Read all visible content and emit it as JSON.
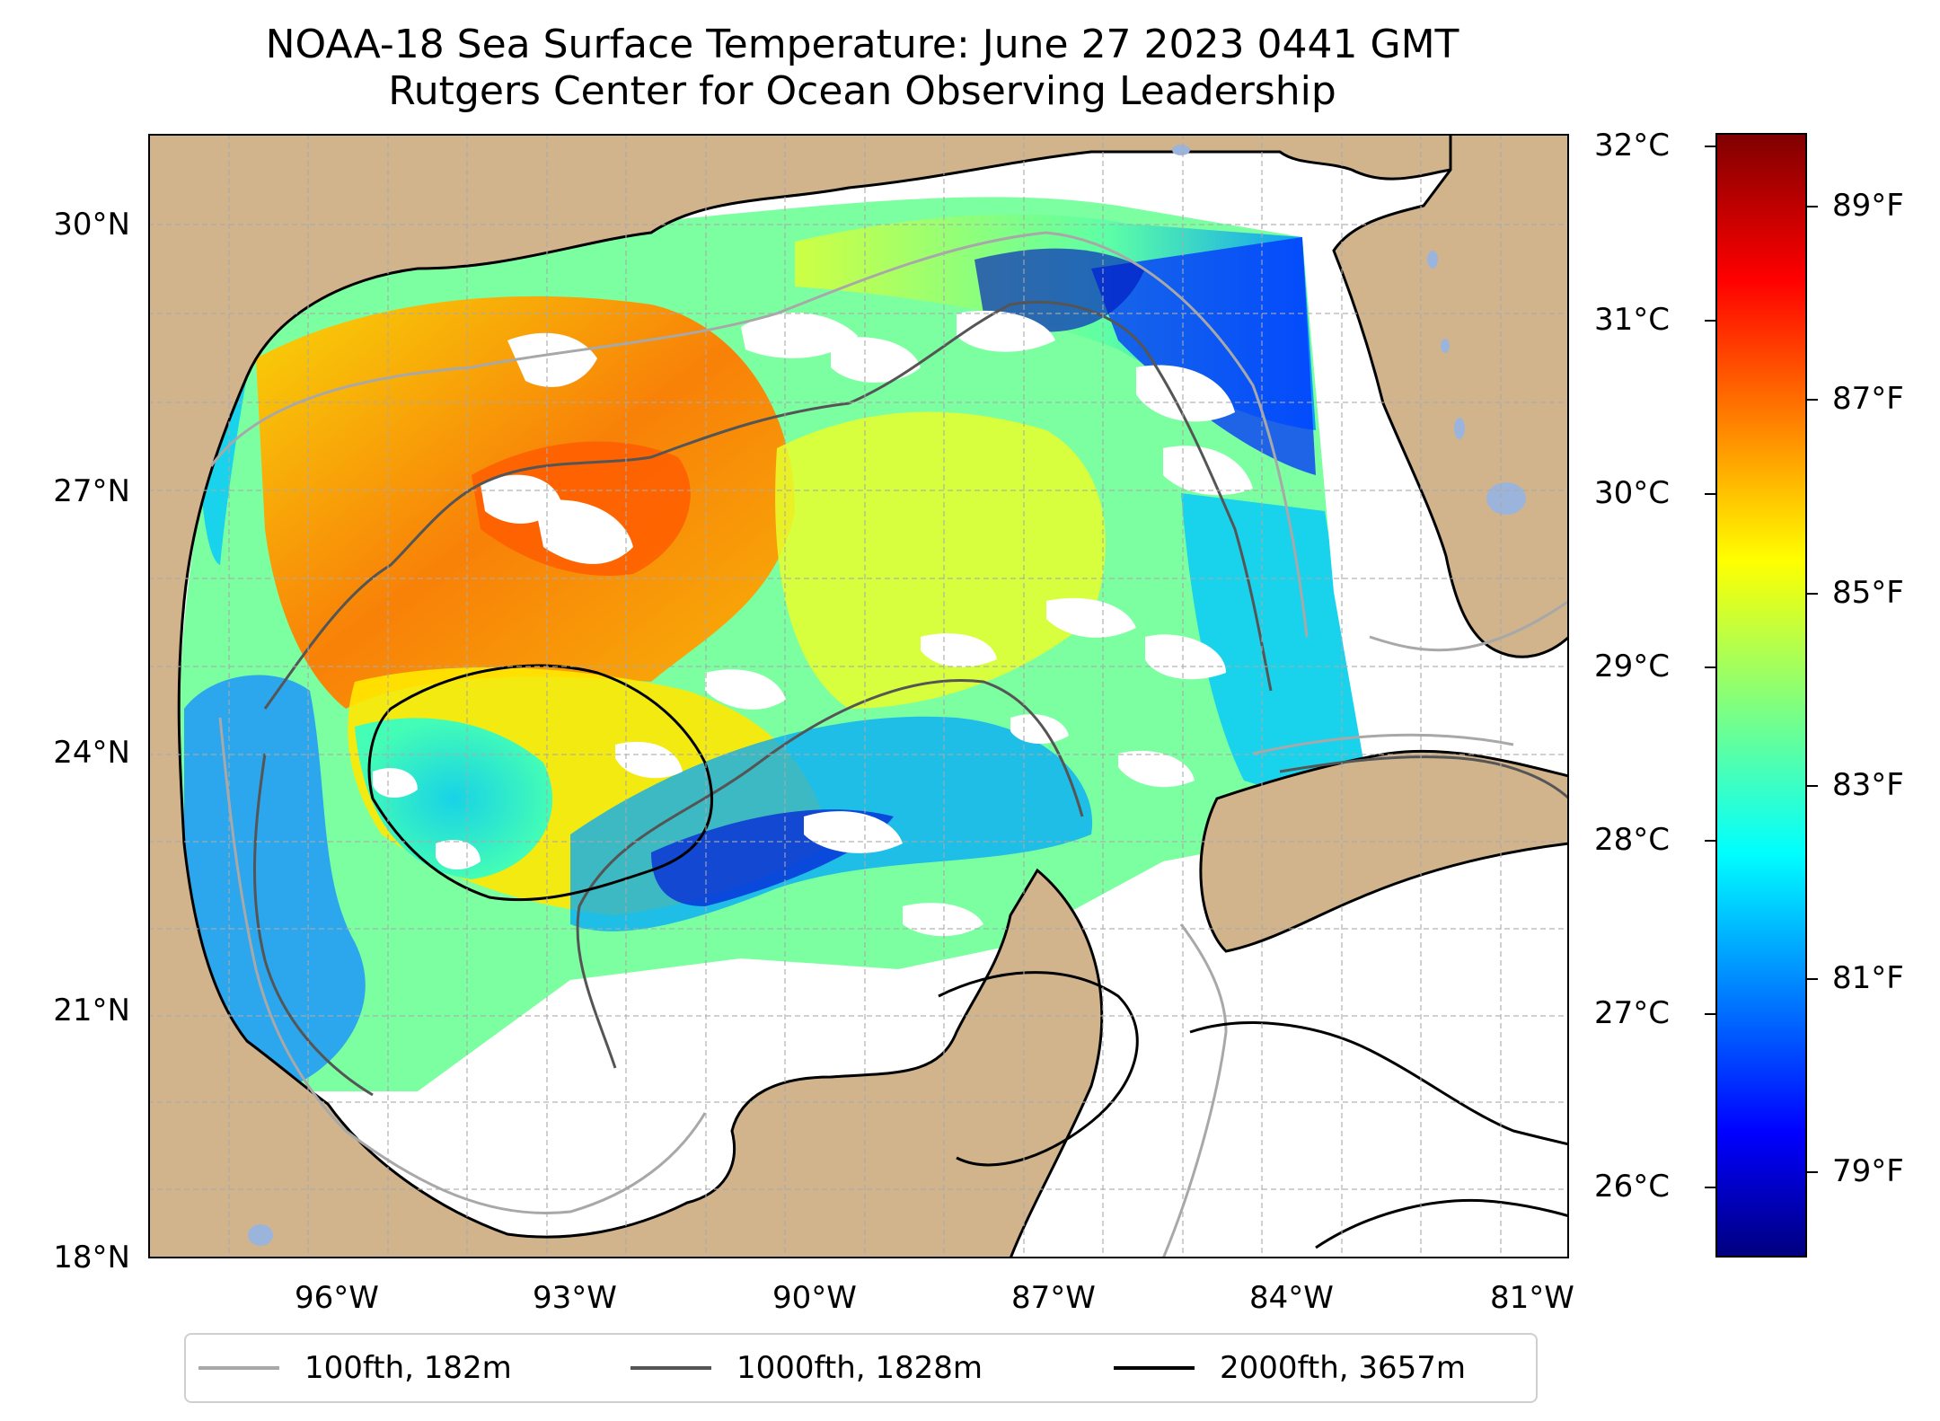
{
  "title": {
    "line1": "NOAA-18 Sea Surface Temperature: June 27 2023 0441 GMT",
    "line2": "Rutgers Center for Ocean Observing Leadership"
  },
  "map": {
    "lat_ticks": [
      "30°N",
      "27°N",
      "24°N",
      "21°N",
      "18°N"
    ],
    "lon_ticks": [
      "96°W",
      "93°W",
      "90°W",
      "87°W",
      "84°W",
      "81°W"
    ],
    "colors": {
      "land": "#d2b48c",
      "lakes": "#9bb4dc",
      "no_data": "#ffffff",
      "isobath_100": "#a8a8a8",
      "isobath_1000": "#555555",
      "isobath_2000": "#000000",
      "grid": "#aaaaaa"
    }
  },
  "colorbar": {
    "celsius_ticks": [
      "32°C",
      "31°C",
      "30°C",
      "29°C",
      "28°C",
      "27°C",
      "26°C"
    ],
    "fahrenheit_ticks": [
      "89°F",
      "87°F",
      "85°F",
      "83°F",
      "81°F",
      "79°F"
    ],
    "colormap": "jet"
  },
  "legend": {
    "items": [
      {
        "label": "100fth, 182m",
        "color": "#a8a8a8"
      },
      {
        "label": "1000fth, 1828m",
        "color": "#555555"
      },
      {
        "label": "2000fth, 3657m",
        "color": "#000000"
      }
    ]
  }
}
